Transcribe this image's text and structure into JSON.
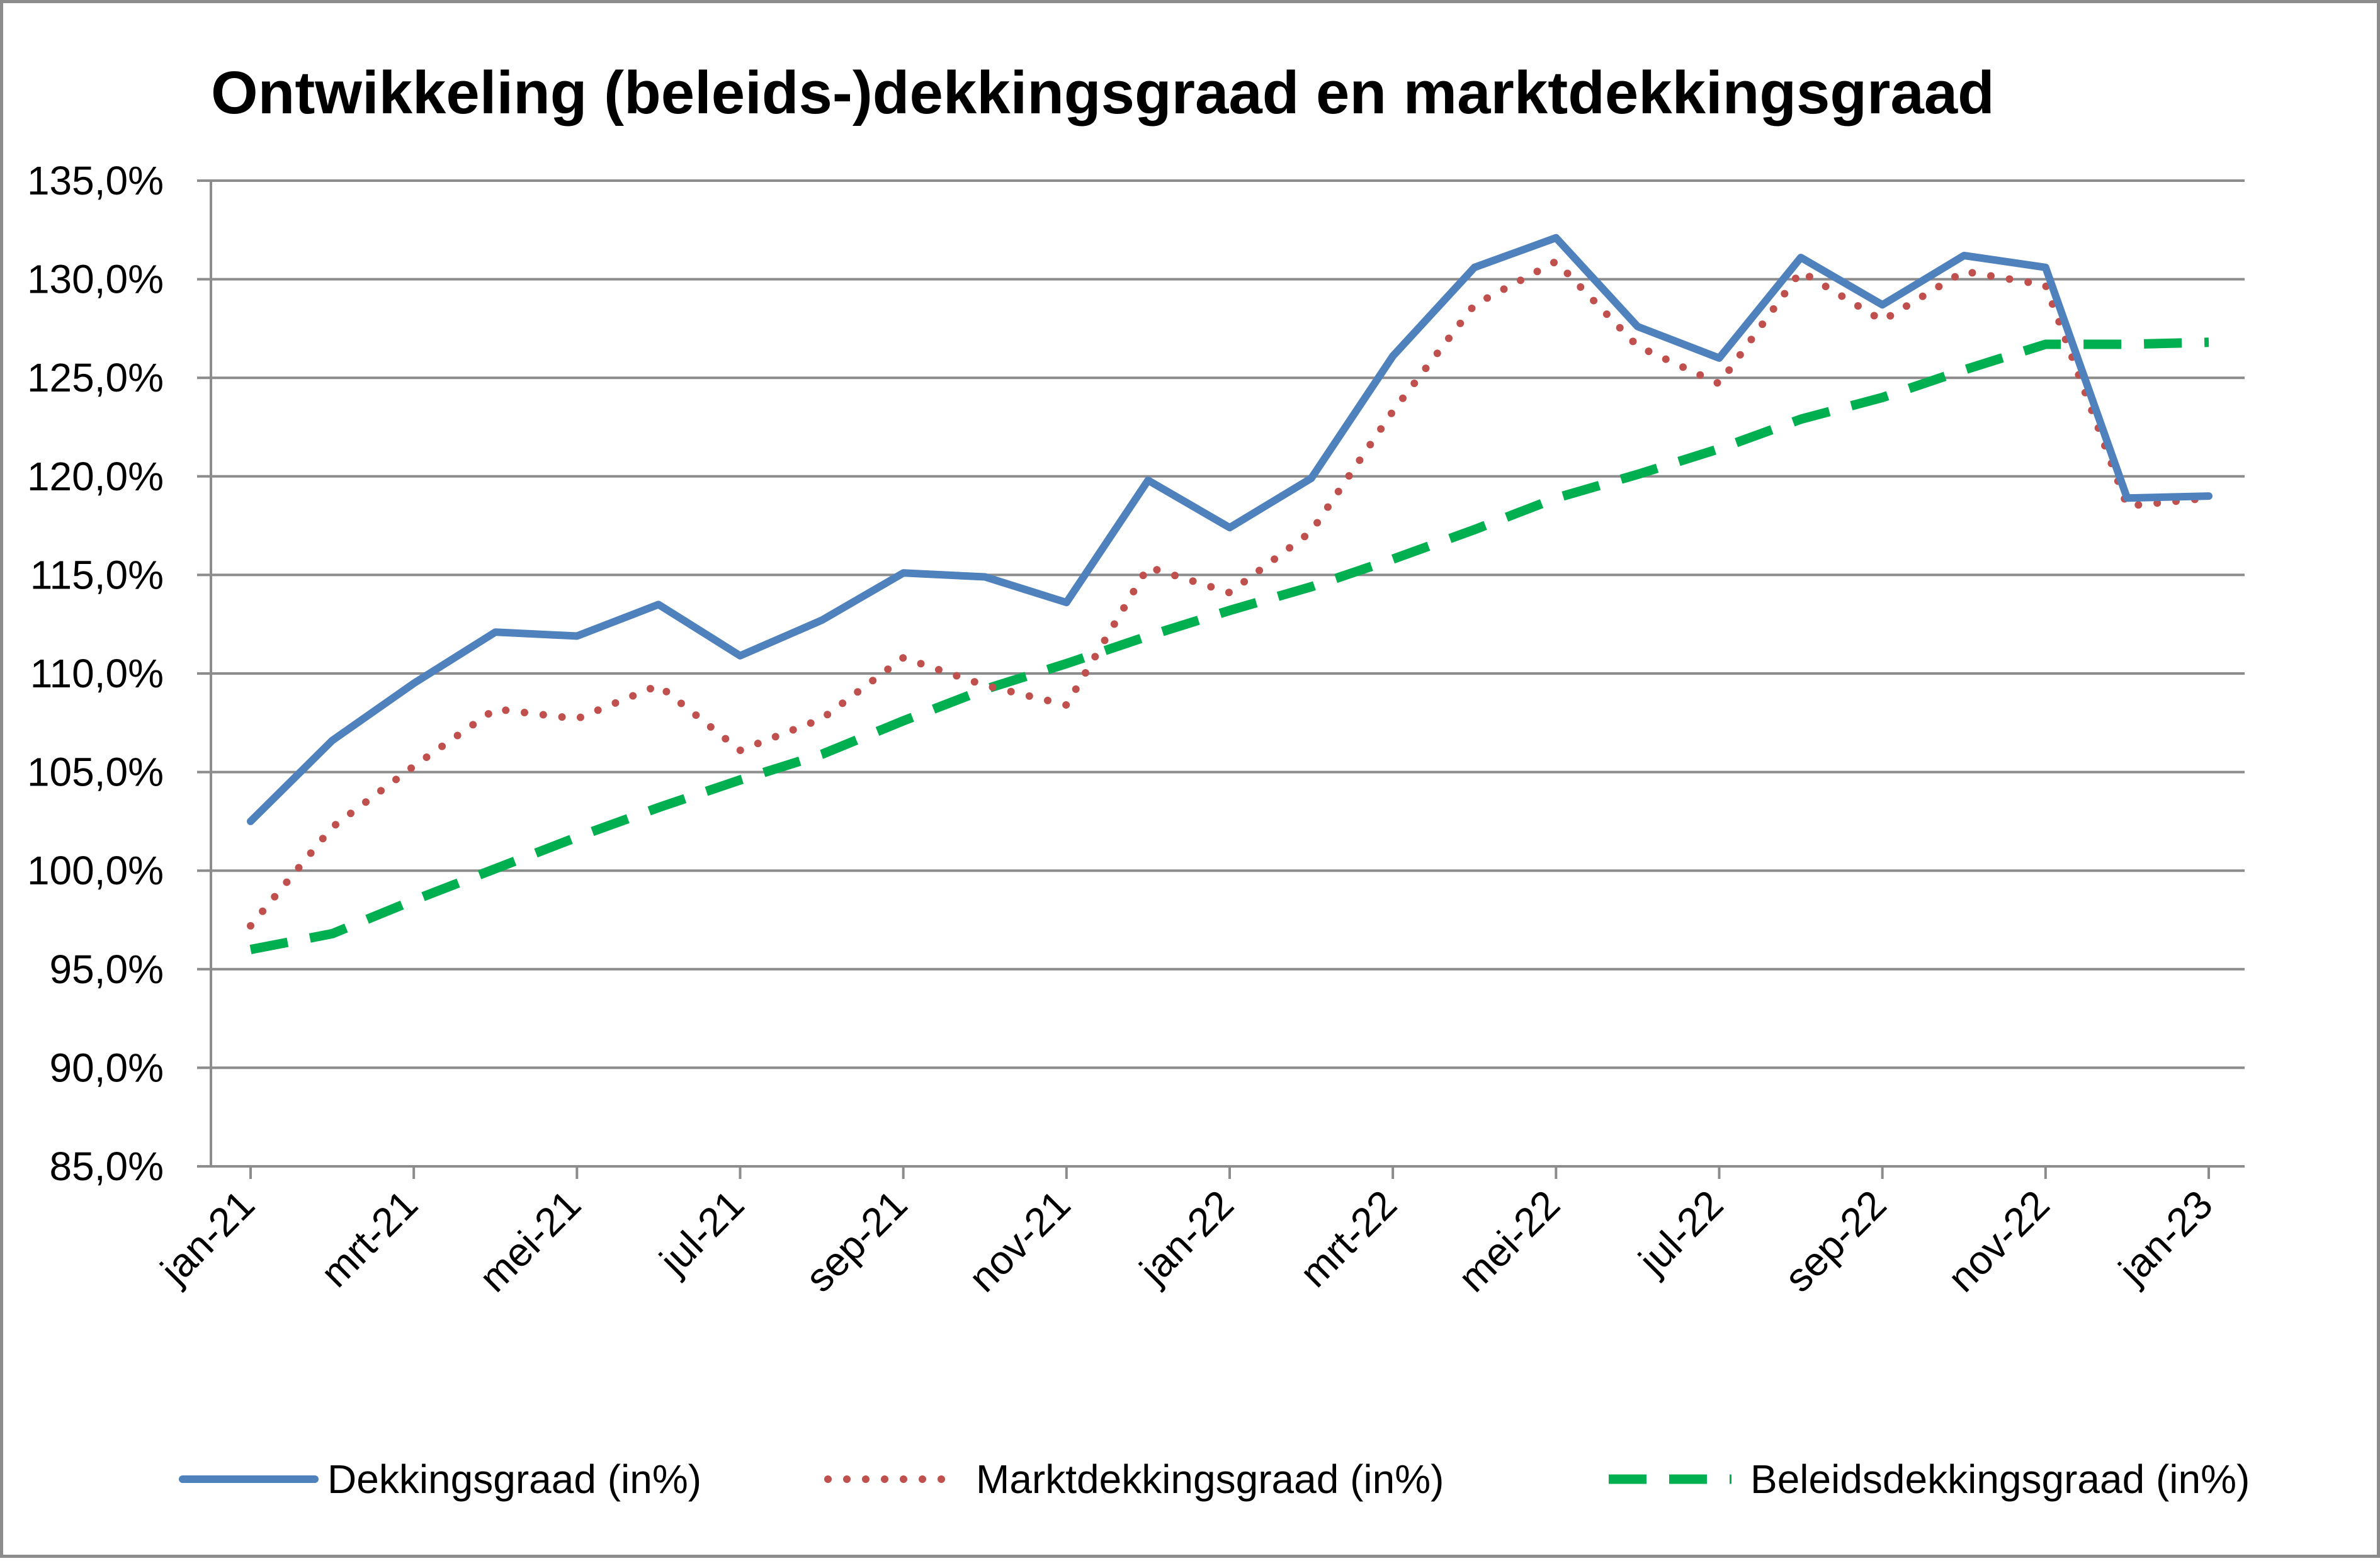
{
  "chart_data": {
    "type": "line",
    "title": "Ontwikkeling (beleids-)dekkingsgraad en marktdekkingsgraad",
    "xlabel": "",
    "ylabel": "",
    "ylim": [
      85,
      135
    ],
    "y_ticks": [
      "85,0%",
      "90,0%",
      "95,0%",
      "100,0%",
      "105,0%",
      "110,0%",
      "115,0%",
      "120,0%",
      "125,0%",
      "130,0%",
      "135,0%"
    ],
    "y_tick_values": [
      85,
      90,
      95,
      100,
      105,
      110,
      115,
      120,
      125,
      130,
      135
    ],
    "categories": [
      "jan-21",
      "feb-21",
      "mrt-21",
      "apr-21",
      "mei-21",
      "jun-21",
      "jul-21",
      "aug-21",
      "sep-21",
      "okt-21",
      "nov-21",
      "dec-21",
      "jan-22",
      "feb-22",
      "mrt-22",
      "apr-22",
      "mei-22",
      "jun-22",
      "jul-22",
      "aug-22",
      "sep-22",
      "okt-22",
      "nov-22",
      "dec-22",
      "jan-23"
    ],
    "x_tick_labels": [
      "jan-21",
      "mrt-21",
      "mei-21",
      "jul-21",
      "sep-21",
      "nov-21",
      "jan-22",
      "mrt-22",
      "mei-22",
      "jul-22",
      "sep-22",
      "nov-22",
      "jan-23"
    ],
    "grid": true,
    "legend_position": "bottom",
    "series": [
      {
        "name": "Dekkingsgraad (in%)",
        "color": "#4f81bd",
        "style": "solid",
        "values": [
          102.5,
          106.6,
          109.5,
          112.1,
          111.9,
          113.5,
          110.9,
          112.7,
          115.1,
          114.9,
          113.6,
          119.8,
          117.4,
          119.9,
          126.1,
          130.6,
          132.1,
          127.6,
          126.0,
          131.1,
          128.7,
          131.2,
          130.6,
          118.9,
          119.0
        ]
      },
      {
        "name": "Marktdekkingsgraad (in%)",
        "color": "#c0504d",
        "style": "dotted",
        "values": [
          97.2,
          102.2,
          105.3,
          108.2,
          107.7,
          109.4,
          106.1,
          107.7,
          110.8,
          109.4,
          108.4,
          115.4,
          114.1,
          117.2,
          123.3,
          128.7,
          130.9,
          126.6,
          124.7,
          130.4,
          127.9,
          130.4,
          129.7,
          118.5,
          118.9
        ]
      },
      {
        "name": "Beleidsdekkingsgraad (in%)",
        "color": "#00b050",
        "style": "dashed",
        "values": [
          96.0,
          96.8,
          98.5,
          100.1,
          101.7,
          103.2,
          104.6,
          105.9,
          107.6,
          109.2,
          110.5,
          111.9,
          113.2,
          114.4,
          115.8,
          117.3,
          118.9,
          120.1,
          121.4,
          122.9,
          124.0,
          125.4,
          126.7,
          126.7,
          126.8
        ]
      }
    ]
  }
}
